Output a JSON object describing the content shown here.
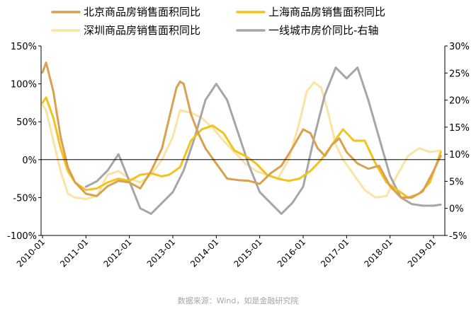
{
  "chart_data": {
    "type": "line",
    "legend_placement": "top",
    "grid": false,
    "y_left": {
      "ticks": [
        "150%",
        "100%",
        "50%",
        "0%",
        "-50%",
        "-100%"
      ],
      "tick_values": [
        150,
        100,
        50,
        0,
        -50,
        -100
      ],
      "range": [
        -100,
        150
      ]
    },
    "y_right": {
      "ticks": [
        "30%",
        "25%",
        "20%",
        "15%",
        "10%",
        "5%",
        "0%",
        "-5%"
      ],
      "tick_values": [
        30,
        25,
        20,
        15,
        10,
        5,
        0,
        -5
      ],
      "range": [
        -5,
        30
      ]
    },
    "x_ticks": [
      "2010-01",
      "2011-01",
      "2012-01",
      "2013-01",
      "2014-01",
      "2015-01",
      "2016-01",
      "2017-01",
      "2018-01",
      "2019-01"
    ],
    "series": [
      {
        "name": "北京商品房销售面积同比",
        "color": "#d9a14f",
        "axis": "left",
        "x": [
          "2010-01",
          "2010-02",
          "2010-04",
          "2010-06",
          "2010-08",
          "2010-10",
          "2011-01",
          "2011-04",
          "2011-07",
          "2011-10",
          "2012-01",
          "2012-04",
          "2012-07",
          "2012-10",
          "2012-12",
          "2013-02",
          "2013-03",
          "2013-04",
          "2013-06",
          "2013-08",
          "2013-10",
          "2014-01",
          "2014-04",
          "2014-07",
          "2014-10",
          "2015-01",
          "2015-04",
          "2015-07",
          "2015-10",
          "2016-01",
          "2016-03",
          "2016-05",
          "2016-07",
          "2016-09",
          "2016-11",
          "2017-01",
          "2017-04",
          "2017-07",
          "2017-10",
          "2018-01",
          "2018-04",
          "2018-07",
          "2018-10",
          "2019-01",
          "2019-03"
        ],
        "values": [
          115,
          128,
          90,
          30,
          -10,
          -30,
          -45,
          -48,
          -35,
          -28,
          -30,
          -38,
          -15,
          15,
          55,
          95,
          103,
          100,
          60,
          35,
          15,
          -5,
          -25,
          -27,
          -28,
          -32,
          -18,
          -8,
          15,
          40,
          35,
          15,
          5,
          20,
          28,
          10,
          -5,
          -12,
          -8,
          -35,
          -50,
          -50,
          -42,
          -15,
          5
        ]
      },
      {
        "name": "上海商品房销售面积同比",
        "color": "#f2c21d",
        "axis": "left",
        "x": [
          "2010-01",
          "2010-02",
          "2010-04",
          "2010-06",
          "2010-08",
          "2010-10",
          "2011-01",
          "2011-04",
          "2011-07",
          "2011-10",
          "2012-01",
          "2012-04",
          "2012-07",
          "2012-10",
          "2012-12",
          "2013-03",
          "2013-06",
          "2013-09",
          "2013-12",
          "2014-03",
          "2014-06",
          "2014-09",
          "2014-12",
          "2015-03",
          "2015-06",
          "2015-09",
          "2015-12",
          "2016-03",
          "2016-06",
          "2016-09",
          "2016-12",
          "2017-03",
          "2017-06",
          "2017-09",
          "2017-12",
          "2018-03",
          "2018-06",
          "2018-09",
          "2018-12",
          "2019-03"
        ],
        "values": [
          75,
          82,
          55,
          15,
          -15,
          -30,
          -40,
          -38,
          -30,
          -25,
          -28,
          -20,
          -18,
          -22,
          -20,
          -10,
          25,
          40,
          45,
          35,
          12,
          5,
          -5,
          -20,
          -25,
          -28,
          -25,
          -15,
          0,
          20,
          40,
          25,
          25,
          -5,
          -30,
          -40,
          -50,
          -45,
          -30,
          10
        ]
      },
      {
        "name": "深圳商品房销售面积同比",
        "color": "#f9e4a3",
        "axis": "left",
        "x": [
          "2010-01",
          "2010-02",
          "2010-04",
          "2010-06",
          "2010-08",
          "2010-10",
          "2011-01",
          "2011-04",
          "2011-07",
          "2011-10",
          "2012-01",
          "2012-04",
          "2012-07",
          "2012-10",
          "2013-01",
          "2013-03",
          "2013-06",
          "2013-09",
          "2013-12",
          "2014-03",
          "2014-06",
          "2014-09",
          "2014-12",
          "2015-03",
          "2015-06",
          "2015-09",
          "2015-12",
          "2016-02",
          "2016-04",
          "2016-06",
          "2016-08",
          "2016-10",
          "2016-12",
          "2017-03",
          "2017-06",
          "2017-09",
          "2017-12",
          "2018-03",
          "2018-06",
          "2018-09",
          "2018-12",
          "2019-03"
        ],
        "values": [
          72,
          65,
          25,
          -15,
          -45,
          -50,
          -52,
          -48,
          -20,
          -15,
          -25,
          -30,
          -20,
          0,
          30,
          65,
          62,
          55,
          42,
          25,
          10,
          -5,
          -15,
          -20,
          -25,
          0,
          50,
          90,
          102,
          95,
          60,
          20,
          0,
          -20,
          -40,
          -50,
          -48,
          -20,
          5,
          15,
          10,
          12
        ]
      },
      {
        "name": "一线城市房价同比-右轴",
        "color": "#a6a6a6",
        "axis": "right",
        "x": [
          "2011-01",
          "2011-04",
          "2011-07",
          "2011-10",
          "2012-01",
          "2012-04",
          "2012-07",
          "2012-10",
          "2013-01",
          "2013-04",
          "2013-07",
          "2013-10",
          "2014-01",
          "2014-04",
          "2014-07",
          "2014-10",
          "2015-01",
          "2015-04",
          "2015-07",
          "2015-10",
          "2016-01",
          "2016-04",
          "2016-07",
          "2016-10",
          "2017-01",
          "2017-04",
          "2017-07",
          "2017-10",
          "2018-01",
          "2018-04",
          "2018-07",
          "2018-10",
          "2019-01",
          "2019-03"
        ],
        "values": [
          4,
          5,
          7,
          10,
          5,
          0,
          -1,
          1,
          3,
          7,
          13,
          20,
          23,
          20,
          14,
          8,
          3,
          1,
          -1,
          1,
          4,
          13,
          21,
          26,
          24,
          26,
          20,
          13,
          6,
          2,
          0.8,
          0.5,
          0.5,
          0.7
        ]
      }
    ]
  },
  "source": "数据来源：Wind，如是金融研究院"
}
